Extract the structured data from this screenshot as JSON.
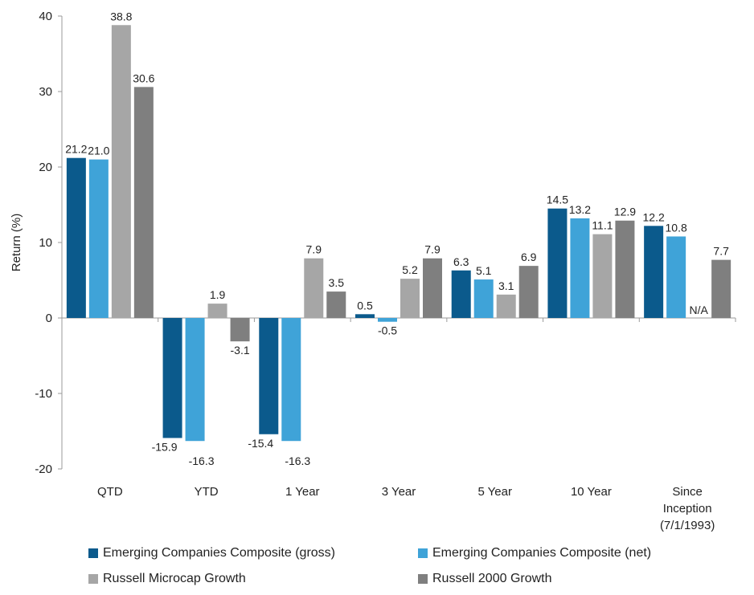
{
  "chart_data": {
    "type": "bar",
    "ylabel": "Return (%)",
    "ylim": [
      -20,
      40
    ],
    "yticks": [
      -20,
      -10,
      0,
      10,
      20,
      30,
      40
    ],
    "categories": [
      [
        "QTD"
      ],
      [
        "YTD"
      ],
      [
        "1 Year"
      ],
      [
        "3 Year"
      ],
      [
        "5 Year"
      ],
      [
        "10 Year"
      ],
      [
        "Since",
        "Inception",
        "(7/1/1993)"
      ]
    ],
    "series": [
      {
        "name": "Emerging Companies Composite (gross)",
        "color": "#0b5a8c",
        "values": [
          21.2,
          -15.9,
          -15.4,
          0.5,
          6.3,
          14.5,
          12.2
        ],
        "labels": [
          "21.2",
          "-15.9",
          "-15.4",
          "0.5",
          "6.3",
          "14.5",
          "12.2"
        ]
      },
      {
        "name": "Emerging Companies Composite (net)",
        "color": "#3fa3d8",
        "values": [
          21.0,
          -16.3,
          -16.3,
          -0.5,
          5.1,
          13.2,
          10.8
        ],
        "labels": [
          "21.0",
          "-16.3",
          "-16.3",
          "-0.5",
          "5.1",
          "13.2",
          "10.8"
        ]
      },
      {
        "name": "Russell Microcap Growth",
        "color": "#a6a6a6",
        "values": [
          38.8,
          1.9,
          7.9,
          5.2,
          3.1,
          11.1,
          null
        ],
        "labels": [
          "38.8",
          "1.9",
          "7.9",
          "5.2",
          "3.1",
          "11.1",
          "N/A"
        ]
      },
      {
        "name": "Russell 2000 Growth",
        "color": "#7f7f7f",
        "values": [
          30.6,
          -3.1,
          3.5,
          7.9,
          6.9,
          12.9,
          7.7
        ],
        "labels": [
          "30.6",
          "-3.1",
          "3.5",
          "7.9",
          "6.9",
          "12.9",
          "7.7"
        ]
      }
    ],
    "grid": false,
    "legend": "bottom"
  }
}
